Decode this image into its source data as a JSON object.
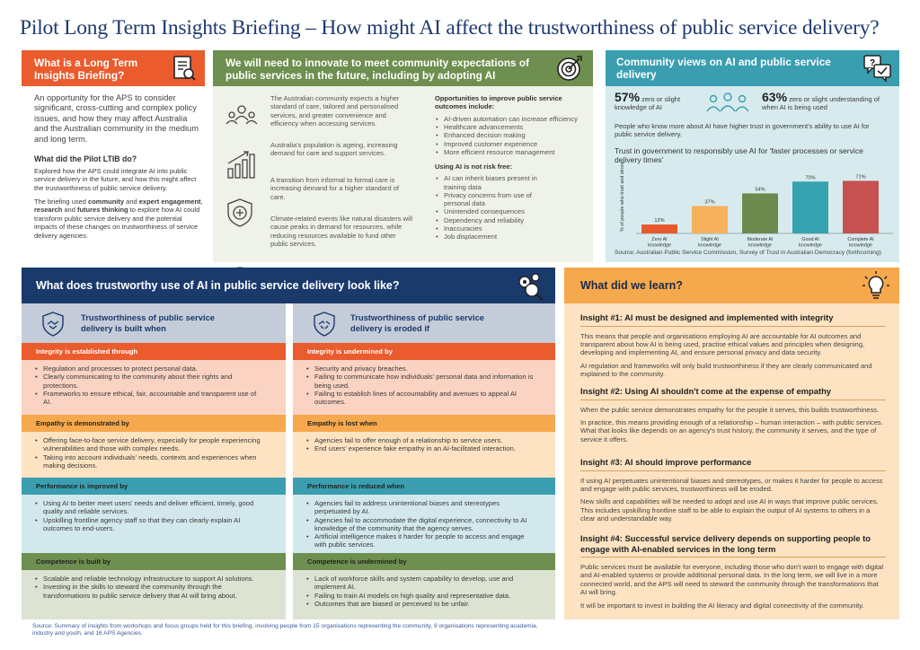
{
  "title": "Pilot Long Term Insights Briefing – How might AI affect the trustworthiness of public service delivery?",
  "panel1": {
    "heading": "What is a Long Term Insights Briefing?",
    "intro": "An opportunity for the APS to consider significant, cross-cutting and complex policy issues, and how they may affect Australia and the Australian community in the medium and long term.",
    "subheading": "What did the Pilot LTIB do?",
    "para1": "Explored how the APS could integrate AI into public service delivery in the future, and how this might affect the trustworthiness of public service delivery.",
    "para2_a": "The briefing used ",
    "para2_b1": "community",
    "para2_c": " and ",
    "para2_b2": "expert engagement",
    "para2_d": ", ",
    "para2_b3": "research",
    "para2_e": " and ",
    "para2_b4": "futures thinking",
    "para2_f": " to explore how AI could transform public service delivery and the potential impacts of these changes on trustworthiness of service delivery agencies."
  },
  "panel2": {
    "heading": "We will need to innovate to meet community expectations of public services in the future, including by adopting AI",
    "items": [
      "The Australian community expects a higher standard of care, tailored and personalised services, and greater convenience and efficiency when accessing services.",
      "Australia's population is ageing, increasing demand for care and support services.",
      "A transition from informal to formal care is increasing demand for a higher standard of care.",
      "Climate-related events like natural disasters will cause peaks in demand for resources, while reducing resources available to fund other public services."
    ],
    "opps_heading": "Opportunities to improve public service outcomes include:",
    "opps": [
      "AI-driven automation can increase efficiency",
      "Healthcare advancements",
      "Enhanced decision making",
      "Improved customer experience",
      "More efficient resource management"
    ],
    "risk_heading": "Using AI is not risk free:",
    "risks": [
      "AI can inherit biases present in training data",
      "Privacy concerns from use of personal data",
      "Unintended consequences",
      "Dependency and reliability",
      "Inaccuracies",
      "Job displacement"
    ]
  },
  "panel3": {
    "heading": "Community views on AI and public service delivery",
    "stat1_value": "57%",
    "stat1_text": " zero or slight knowledge of AI",
    "stat2_value": "63%",
    "stat2_text": " zero or slight understanding of when AI is being used",
    "note": "People who know more about AI have higher trust in government's ability to use AI for public service delivery.",
    "chart_title": "Trust in government to responsibly use AI for 'faster processes or service delivery times'",
    "source": "Source: Australian Public Service Commission, Survey of Trust in Australian Democracy (forthcoming)"
  },
  "chart_data": {
    "type": "bar",
    "title": "Trust in government to responsibly use AI for 'faster processes or service delivery times'",
    "ylabel": "% of people who trust and strongly trust",
    "categories": [
      "Zero AI knowledge",
      "Slight AI knowledge",
      "Moderate AI knowledge",
      "Good AI knowledge",
      "Complete AI knowledge"
    ],
    "values": [
      12,
      37,
      54,
      70,
      71
    ],
    "value_labels": [
      "12%",
      "37%",
      "54%",
      "70%",
      "71%"
    ],
    "colors": [
      "#e8582c",
      "#f5b15c",
      "#6f8a4e",
      "#36a3b0",
      "#c55250"
    ],
    "ylim": [
      0,
      80
    ]
  },
  "panel4": {
    "heading": "What does trustworthy use of AI in public service delivery look like?",
    "left_title": "Trustworthiness of public service delivery is built when",
    "right_title": "Trustworthiness of public service delivery is eroded if",
    "rows": [
      {
        "left_h": "Integrity is established through",
        "left": [
          "Regulation and processes to protect personal data.",
          "Clearly communicating to the community about their rights and protections.",
          "Frameworks to ensure ethical, fair, accountable and transparent use of AI."
        ],
        "right_h": "Integrity is undermined by",
        "right": [
          "Security and privacy breaches.",
          "Failing to communicate how individuals' personal data and information is being used.",
          "Failing to establish lines of accountability and avenues to appeal AI outcomes."
        ]
      },
      {
        "left_h": "Empathy is demonstrated by",
        "left": [
          "Offering face-to-face service delivery, especially for people experiencing vulnerabilities and those with complex needs.",
          "Taking into account individuals' needs, contexts and experiences when making decisions."
        ],
        "right_h": "Empathy is lost when",
        "right": [
          "Agencies fail to offer enough of a relationship to service users.",
          "End users' experience fake empathy in an AI-facilitated interaction."
        ]
      },
      {
        "left_h": "Performance is improved by",
        "left": [
          "Using AI to better meet users' needs and deliver efficient, timely, good quality and reliable services.",
          "Upskilling frontline agency staff so that they can clearly explain AI outcomes to end-users."
        ],
        "right_h": "Performance is reduced when",
        "right": [
          "Agencies fail to address unintentional biases and stereotypes perpetuated by AI.",
          "Agencies fail to accommodate the digital experience, connectivity to AI knowledge of the community that the agency serves.",
          "Artificial intelligence makes it harder for people to access and engage with public services."
        ]
      },
      {
        "left_h": "Competence is built by",
        "left": [
          "Scalable and reliable technology infrastructure to support AI solutions.",
          "Investing in the skills to steward the community through the transformations to public service delivery that AI will bring about."
        ],
        "right_h": "Competence is undermined by",
        "right": [
          "Lack of workforce skills and system capability to develop, use and implement AI.",
          "Failing to train AI models on high quality and representative data.",
          "Outcomes that are biased or perceived to be unfair."
        ]
      }
    ]
  },
  "panel5": {
    "heading": "What did we learn?",
    "insights": [
      {
        "h": "Insight #1: AI must be designed and implemented with integrity",
        "p": [
          "This means that people and organisations employing AI are accountable for AI outcomes and transparent about how AI is being used, practise ethical values and principles when designing, developing and implementing AI, and ensure personal privacy and data security.",
          "AI regulation and frameworks will only build trustworthiness if they are clearly communicated and explained to the community."
        ]
      },
      {
        "h": "Insight #2: Using AI shouldn't come at the expense of empathy",
        "p": [
          "When the public service demonstrates empathy for the people it serves, this builds trustworthiness.",
          "In practice, this means providing enough of a relationship – human interaction – with public services. What that looks like depends on an agency's trust history, the community it serves, and the type of service it offers."
        ]
      },
      {
        "h": "Insight #3: AI should improve performance",
        "p": [
          "If using AI perpetuates unintentional biases and stereotypes, or makes it harder for people to access and engage with public services, trustworthiness will be eroded.",
          "New skills and capabilities will be needed to adopt and use AI in ways that improve public services. This includes upskilling frontline staff to be able to explain the output of AI systems to others in a clear and understandable way."
        ]
      },
      {
        "h": "Insight #4: Successful service delivery depends on supporting people to engage with AI-enabled services in the long term",
        "p": [
          "Public services must be available for everyone, including those who don't want to engage with digital and AI-enabled systems or provide additional personal data. In the long term, we will live in a more connected world, and the APS will need to steward the community through the transformations that AI will bring.",
          "It will be important to invest in building the AI literacy and digital connectivity of the community."
        ]
      }
    ]
  },
  "footnote": "Source: Summary of insights from workshops and focus groups held for this briefing, involving people from 15 organisations representing the community, 9 organisations representing academia, industry and youth, and 16 APS Agencies."
}
